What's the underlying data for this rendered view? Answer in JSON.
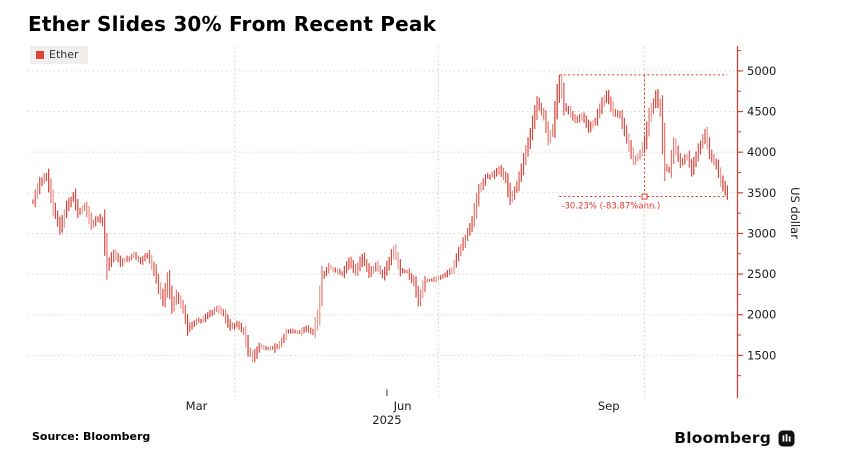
{
  "header": {
    "title": "Ether Slides 30% From Recent Peak"
  },
  "legend": {
    "items": [
      {
        "label": "Ether",
        "color": "#e0453c"
      }
    ]
  },
  "footer": {
    "source": "Source: Bloomberg",
    "brand": "Bloomberg",
    "brand_icon": "bloomberg-terminal-icon"
  },
  "colors": {
    "axis": "#e0372e",
    "annotation": "#e0372e",
    "h_gridline": "#ddd5d5",
    "v_gridline": "#eec5c0",
    "tick_label": "#1a1a1a",
    "bar_palette": [
      "#cf3b33",
      "#dd5a50",
      "#e2776e",
      "#ce4840",
      "#e89a92",
      "#d94b42"
    ]
  },
  "chart_data": {
    "type": "bar",
    "render_style": "daily_hlc_price_bars",
    "title": "Ether Slides 30% From Recent Peak",
    "series_name": "Ether",
    "ylabel": "US dollar",
    "legend_position": "top-left",
    "grid": true,
    "x_axis": {
      "unit": "days since 2025-01-01",
      "year_label": {
        "text": "2025",
        "day": 158
      },
      "month_labels": [
        {
          "text": "Mar",
          "day": 73
        },
        {
          "text": "Jun",
          "day": 165
        },
        {
          "text": "Sep",
          "day": 257
        }
      ],
      "quarter_gridline_days": [
        90,
        181,
        273
      ],
      "range_days": [
        0,
        310
      ]
    },
    "y_axis": {
      "side": "right",
      "label": "US dollar",
      "ticks": [
        1500,
        2000,
        2500,
        3000,
        3500,
        4000,
        4500,
        5000
      ],
      "minor_tick_step": 250,
      "render_range": [
        1000,
        5294
      ]
    },
    "annotations": {
      "peak_value": 4951,
      "last_value": 3454,
      "floor_low": 1387,
      "box_start_day": 235,
      "box_end_day": 310,
      "connector_day": 273,
      "drawdown_label": "-30.23% (-83.87%ann.)"
    },
    "series": [
      {
        "name": "Ether",
        "color": "#d9423a",
        "points": [
          [
            0,
            3390
          ],
          [
            3,
            3630
          ],
          [
            6,
            3720
          ],
          [
            9,
            3310
          ],
          [
            12,
            3060
          ],
          [
            15,
            3330
          ],
          [
            18,
            3470
          ],
          [
            20,
            3260
          ],
          [
            23,
            3340
          ],
          [
            26,
            3110
          ],
          [
            29,
            3190
          ],
          [
            31,
            3140
          ],
          [
            33,
            2590
          ],
          [
            36,
            2760
          ],
          [
            39,
            2640
          ],
          [
            42,
            2690
          ],
          [
            45,
            2730
          ],
          [
            48,
            2660
          ],
          [
            51,
            2740
          ],
          [
            54,
            2540
          ],
          [
            56,
            2340
          ],
          [
            58,
            2170
          ],
          [
            60,
            2440
          ],
          [
            62,
            2110
          ],
          [
            64,
            2240
          ],
          [
            67,
            2060
          ],
          [
            69,
            1830
          ],
          [
            72,
            1910
          ],
          [
            75,
            1930
          ],
          [
            78,
            2000
          ],
          [
            82,
            2080
          ],
          [
            85,
            2010
          ],
          [
            88,
            1850
          ],
          [
            91,
            1880
          ],
          [
            94,
            1790
          ],
          [
            96,
            1560
          ],
          [
            98,
            1470
          ],
          [
            101,
            1610
          ],
          [
            104,
            1590
          ],
          [
            107,
            1580
          ],
          [
            110,
            1640
          ],
          [
            113,
            1780
          ],
          [
            116,
            1800
          ],
          [
            119,
            1780
          ],
          [
            122,
            1840
          ],
          [
            125,
            1780
          ],
          [
            127,
            2000
          ],
          [
            129,
            2470
          ],
          [
            132,
            2590
          ],
          [
            135,
            2540
          ],
          [
            138,
            2510
          ],
          [
            141,
            2660
          ],
          [
            144,
            2530
          ],
          [
            147,
            2710
          ],
          [
            150,
            2520
          ],
          [
            153,
            2610
          ],
          [
            156,
            2480
          ],
          [
            159,
            2670
          ],
          [
            161,
            2800
          ],
          [
            164,
            2550
          ],
          [
            167,
            2520
          ],
          [
            170,
            2400
          ],
          [
            172,
            2180
          ],
          [
            175,
            2430
          ],
          [
            178,
            2420
          ],
          [
            181,
            2450
          ],
          [
            184,
            2500
          ],
          [
            187,
            2560
          ],
          [
            190,
            2770
          ],
          [
            193,
            2950
          ],
          [
            196,
            3150
          ],
          [
            199,
            3540
          ],
          [
            202,
            3690
          ],
          [
            205,
            3720
          ],
          [
            208,
            3800
          ],
          [
            211,
            3650
          ],
          [
            213,
            3420
          ],
          [
            216,
            3590
          ],
          [
            219,
            3910
          ],
          [
            222,
            4220
          ],
          [
            225,
            4620
          ],
          [
            228,
            4440
          ],
          [
            230,
            4170
          ],
          [
            232,
            4290
          ],
          [
            235,
            4951
          ],
          [
            237,
            4560
          ],
          [
            239,
            4510
          ],
          [
            242,
            4390
          ],
          [
            245,
            4450
          ],
          [
            248,
            4300
          ],
          [
            251,
            4390
          ],
          [
            254,
            4610
          ],
          [
            256,
            4700
          ],
          [
            259,
            4500
          ],
          [
            262,
            4440
          ],
          [
            265,
            4170
          ],
          [
            268,
            3900
          ],
          [
            271,
            3990
          ],
          [
            273,
            4140
          ],
          [
            275,
            4440
          ],
          [
            278,
            4700
          ],
          [
            280,
            4510
          ],
          [
            282,
            3820
          ],
          [
            284,
            3790
          ],
          [
            286,
            4100
          ],
          [
            289,
            3870
          ],
          [
            292,
            3950
          ],
          [
            294,
            3780
          ],
          [
            297,
            4030
          ],
          [
            300,
            4220
          ],
          [
            302,
            3980
          ],
          [
            305,
            3830
          ],
          [
            307,
            3650
          ],
          [
            309,
            3520
          ],
          [
            310,
            3454
          ]
        ]
      }
    ]
  }
}
